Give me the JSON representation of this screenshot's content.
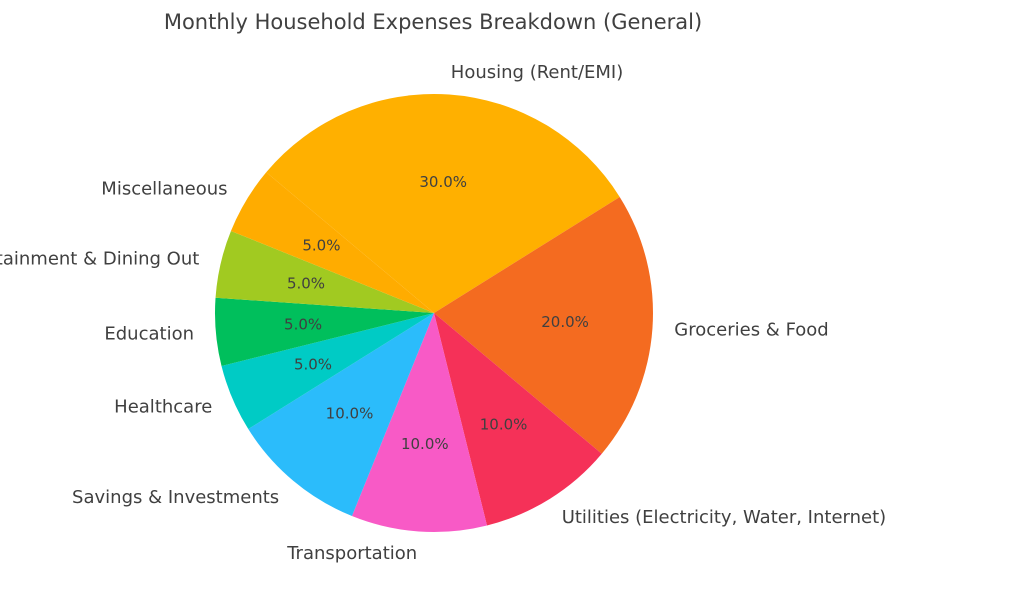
{
  "chart_data": {
    "type": "pie",
    "title": "Monthly Household Expenses Breakdown (General)",
    "slices": [
      {
        "label": "Housing (Rent/EMI)",
        "value": 30.0,
        "pct_text": "30.0%",
        "color": "#FFB000"
      },
      {
        "label": "Groceries & Food",
        "value": 20.0,
        "pct_text": "20.0%",
        "color": "#F46B20"
      },
      {
        "label": "Utilities (Electricity, Water, Internet)",
        "value": 10.0,
        "pct_text": "10.0%",
        "color": "#F53158"
      },
      {
        "label": "Transportation",
        "value": 10.0,
        "pct_text": "10.0%",
        "color": "#F85AC6"
      },
      {
        "label": "Savings & Investments",
        "value": 10.0,
        "pct_text": "10.0%",
        "color": "#2BBCFB"
      },
      {
        "label": "Healthcare",
        "value": 5.0,
        "pct_text": "5.0%",
        "color": "#00CBC5"
      },
      {
        "label": "Education",
        "value": 5.0,
        "pct_text": "5.0%",
        "color": "#00BF5C"
      },
      {
        "label": "Entertainment & Dining Out",
        "value": 5.0,
        "pct_text": "5.0%",
        "color": "#A1CA21"
      },
      {
        "label": "Miscellaneous",
        "value": 5.0,
        "pct_text": "5.0%",
        "color": "#FFAC00"
      }
    ],
    "start_angle_deg": 140,
    "direction": "clockwise",
    "legend": "none"
  }
}
